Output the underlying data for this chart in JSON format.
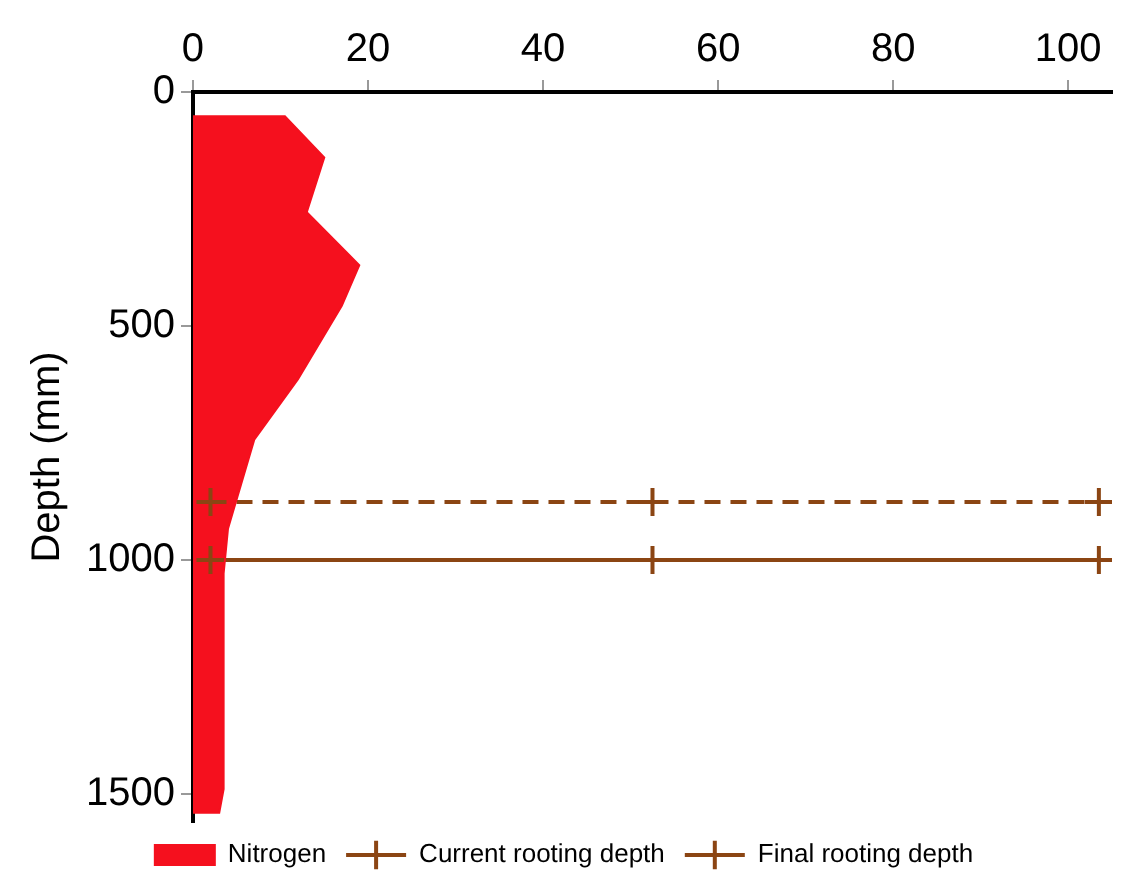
{
  "chart_data": {
    "type": "area",
    "ylabel": "Depth (mm)",
    "xlim": [
      0,
      105
    ],
    "xticks": [
      0,
      20,
      40,
      60,
      80,
      100
    ],
    "ylim": [
      1560,
      0
    ],
    "yticks": [
      0,
      500,
      1000,
      1500
    ],
    "grid": false,
    "legend": "bottom",
    "series": [
      {
        "name": "Nitrogen",
        "color": "#f5101e",
        "x": [
          0,
          10.5,
          15,
          13,
          19,
          17,
          12,
          7,
          5.5,
          4,
          3.5,
          3.5,
          3,
          0
        ],
        "values": [
          52,
          52,
          140,
          257,
          370,
          457,
          614,
          743,
          838,
          933,
          1029,
          1490,
          1540,
          1540
        ]
      },
      {
        "name": "Current rooting depth",
        "type": "line",
        "color": "#8b4513",
        "line_style": "dashed",
        "marker": "cross",
        "x": [
          2,
          52.5,
          103.5
        ],
        "values": [
          876,
          876,
          876
        ]
      },
      {
        "name": "Final rooting depth",
        "type": "line",
        "color": "#8b4513",
        "line_style": "solid",
        "marker": "cross",
        "x": [
          2,
          52.5,
          103.5
        ],
        "values": [
          1000,
          1000,
          1000
        ]
      }
    ]
  }
}
